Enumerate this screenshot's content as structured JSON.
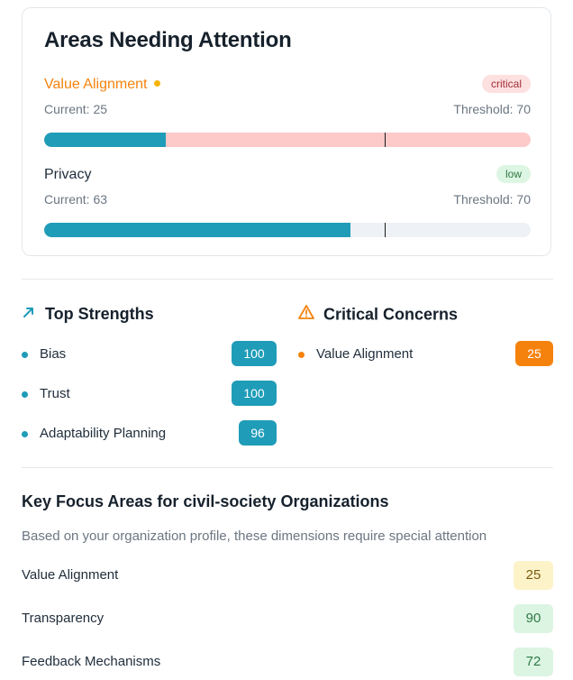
{
  "attention": {
    "title": "Areas Needing Attention",
    "metrics": [
      {
        "name": "Value Alignment",
        "severity": "critical",
        "current_label": "Current: 25",
        "threshold_label": "Threshold: 70",
        "current": 25,
        "threshold": 70
      },
      {
        "name": "Privacy",
        "severity": "low",
        "current_label": "Current: 63",
        "threshold_label": "Threshold: 70",
        "current": 63,
        "threshold": 70
      }
    ]
  },
  "strengths": {
    "title": "Top Strengths",
    "icon": "trending-up-arrow-icon",
    "items": [
      {
        "label": "Bias",
        "score": "100"
      },
      {
        "label": "Trust",
        "score": "100"
      },
      {
        "label": "Adaptability Planning",
        "score": "96"
      }
    ]
  },
  "concerns": {
    "title": "Critical Concerns",
    "icon": "warning-triangle-icon",
    "items": [
      {
        "label": "Value Alignment",
        "score": "25"
      }
    ]
  },
  "focus": {
    "title": "Key Focus Areas for civil-society Organizations",
    "subtitle": "Based on your organization profile, these dimensions require special attention",
    "items": [
      {
        "label": "Value Alignment",
        "score": "25"
      },
      {
        "label": "Transparency",
        "score": "90"
      },
      {
        "label": "Feedback Mechanisms",
        "score": "72"
      }
    ]
  },
  "colors": {
    "accent_teal": "#1f9cb8",
    "critical_orange": "#f5820d",
    "critical_bar_bg": "#fdc9c9",
    "low_badge_bg": "#ddf5e3"
  }
}
